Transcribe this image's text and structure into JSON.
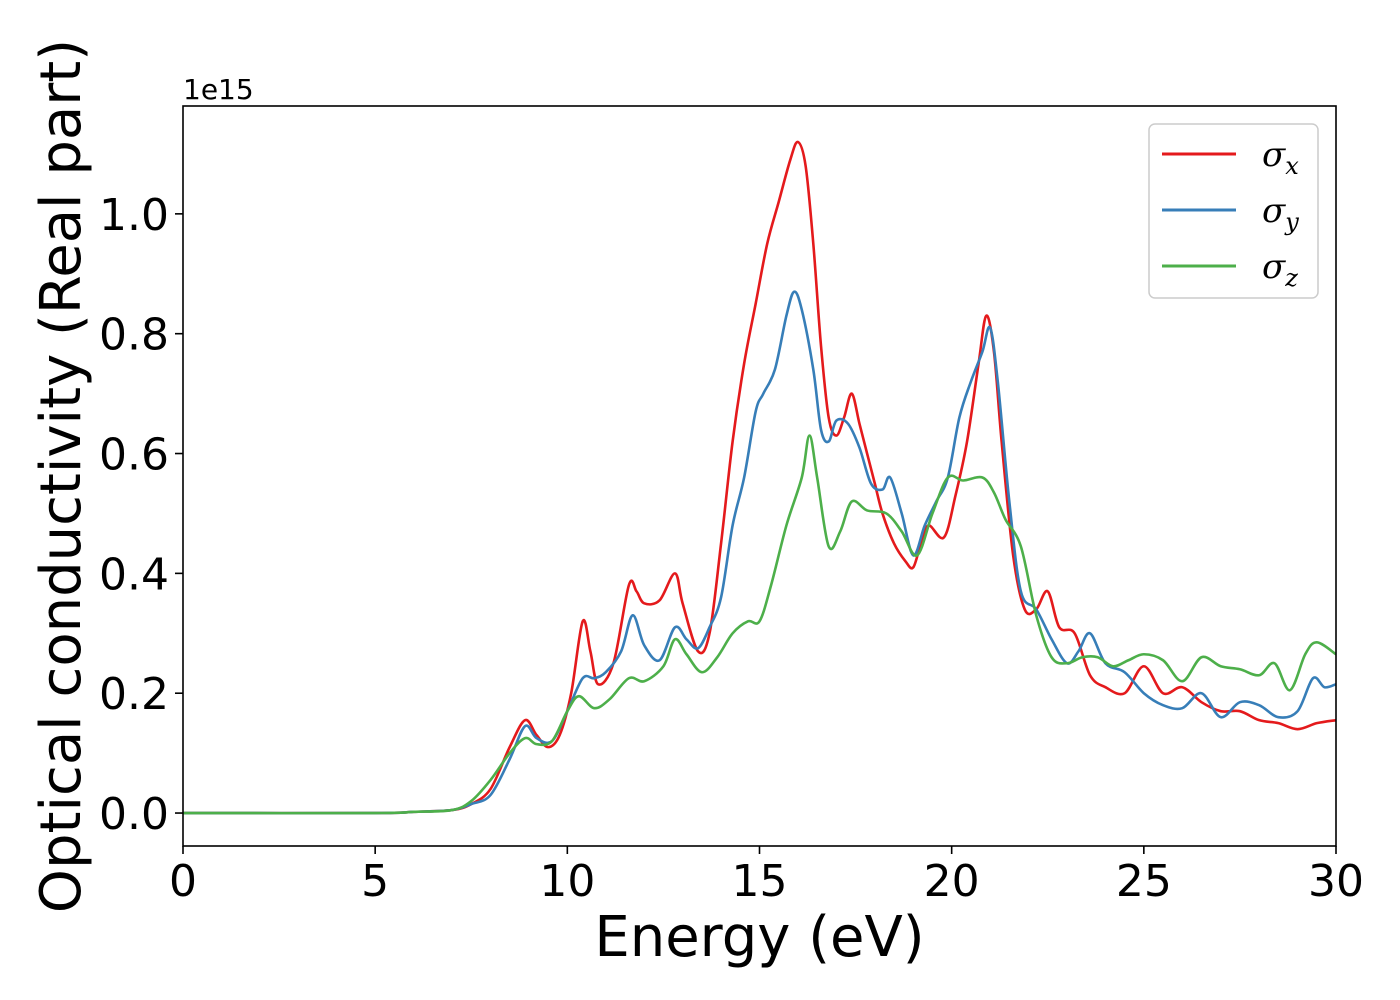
{
  "chart_data": {
    "type": "line",
    "title": "",
    "xlabel": "Energy (eV)",
    "ylabel": "Optical conductivity (Real part)",
    "y_offset_label": "1e15",
    "xlim": [
      0,
      30
    ],
    "ylim": [
      -0.055,
      1.18
    ],
    "x_ticks": [
      0,
      5,
      10,
      15,
      20,
      25,
      30
    ],
    "x_tick_labels": [
      "0",
      "5",
      "10",
      "15",
      "20",
      "25",
      "30"
    ],
    "y_ticks": [
      0.0,
      0.2,
      0.4,
      0.6,
      0.8,
      1.0
    ],
    "y_tick_labels": [
      "0.0",
      "0.2",
      "0.4",
      "0.6",
      "0.8",
      "1.0"
    ],
    "grid": false,
    "legend_position": "top-right",
    "series": [
      {
        "name": "σx",
        "symbol": "σ",
        "subscript": "x",
        "color": "#e41a1c",
        "points": [
          [
            0,
            0
          ],
          [
            5,
            0.0
          ],
          [
            6,
            0.002
          ],
          [
            7,
            0.005
          ],
          [
            7.5,
            0.015
          ],
          [
            8,
            0.04
          ],
          [
            8.5,
            0.11
          ],
          [
            8.9,
            0.155
          ],
          [
            9.2,
            0.13
          ],
          [
            9.5,
            0.11
          ],
          [
            9.8,
            0.13
          ],
          [
            10.1,
            0.2
          ],
          [
            10.4,
            0.32
          ],
          [
            10.6,
            0.27
          ],
          [
            10.8,
            0.215
          ],
          [
            11.2,
            0.25
          ],
          [
            11.6,
            0.38
          ],
          [
            11.8,
            0.37
          ],
          [
            12,
            0.35
          ],
          [
            12.4,
            0.355
          ],
          [
            12.8,
            0.4
          ],
          [
            13,
            0.35
          ],
          [
            13.4,
            0.27
          ],
          [
            13.7,
            0.3
          ],
          [
            14,
            0.45
          ],
          [
            14.3,
            0.62
          ],
          [
            14.6,
            0.75
          ],
          [
            14.9,
            0.85
          ],
          [
            15.2,
            0.95
          ],
          [
            15.5,
            1.02
          ],
          [
            15.8,
            1.09
          ],
          [
            16,
            1.12
          ],
          [
            16.2,
            1.08
          ],
          [
            16.4,
            0.95
          ],
          [
            16.6,
            0.78
          ],
          [
            16.8,
            0.66
          ],
          [
            17,
            0.63
          ],
          [
            17.2,
            0.66
          ],
          [
            17.4,
            0.7
          ],
          [
            17.6,
            0.65
          ],
          [
            17.8,
            0.6
          ],
          [
            18,
            0.55
          ],
          [
            18.2,
            0.5
          ],
          [
            18.5,
            0.45
          ],
          [
            18.8,
            0.42
          ],
          [
            19,
            0.41
          ],
          [
            19.2,
            0.45
          ],
          [
            19.4,
            0.48
          ],
          [
            19.8,
            0.46
          ],
          [
            20.1,
            0.53
          ],
          [
            20.4,
            0.62
          ],
          [
            20.7,
            0.75
          ],
          [
            20.9,
            0.83
          ],
          [
            21.1,
            0.77
          ],
          [
            21.3,
            0.62
          ],
          [
            21.6,
            0.43
          ],
          [
            21.9,
            0.34
          ],
          [
            22.2,
            0.34
          ],
          [
            22.5,
            0.37
          ],
          [
            22.8,
            0.31
          ],
          [
            23.2,
            0.3
          ],
          [
            23.6,
            0.23
          ],
          [
            24,
            0.21
          ],
          [
            24.5,
            0.2
          ],
          [
            25,
            0.245
          ],
          [
            25.5,
            0.2
          ],
          [
            26,
            0.21
          ],
          [
            26.5,
            0.185
          ],
          [
            27,
            0.17
          ],
          [
            27.5,
            0.17
          ],
          [
            28,
            0.155
          ],
          [
            28.5,
            0.15
          ],
          [
            29,
            0.14
          ],
          [
            29.5,
            0.15
          ],
          [
            30,
            0.155
          ]
        ]
      },
      {
        "name": "σy",
        "symbol": "σ",
        "subscript": "y",
        "color": "#377eb8",
        "points": [
          [
            0,
            0
          ],
          [
            5,
            0.0
          ],
          [
            6,
            0.002
          ],
          [
            7,
            0.005
          ],
          [
            7.5,
            0.015
          ],
          [
            8,
            0.03
          ],
          [
            8.5,
            0.09
          ],
          [
            8.9,
            0.145
          ],
          [
            9.2,
            0.125
          ],
          [
            9.6,
            0.12
          ],
          [
            10,
            0.17
          ],
          [
            10.4,
            0.225
          ],
          [
            10.7,
            0.225
          ],
          [
            11,
            0.235
          ],
          [
            11.4,
            0.27
          ],
          [
            11.7,
            0.33
          ],
          [
            12,
            0.28
          ],
          [
            12.4,
            0.255
          ],
          [
            12.8,
            0.31
          ],
          [
            13.1,
            0.29
          ],
          [
            13.4,
            0.275
          ],
          [
            13.7,
            0.31
          ],
          [
            14,
            0.36
          ],
          [
            14.3,
            0.48
          ],
          [
            14.6,
            0.56
          ],
          [
            14.9,
            0.67
          ],
          [
            15.1,
            0.7
          ],
          [
            15.4,
            0.74
          ],
          [
            15.7,
            0.83
          ],
          [
            15.9,
            0.87
          ],
          [
            16.1,
            0.84
          ],
          [
            16.4,
            0.74
          ],
          [
            16.6,
            0.64
          ],
          [
            16.8,
            0.62
          ],
          [
            17,
            0.655
          ],
          [
            17.3,
            0.65
          ],
          [
            17.6,
            0.61
          ],
          [
            17.9,
            0.55
          ],
          [
            18.2,
            0.54
          ],
          [
            18.4,
            0.56
          ],
          [
            18.7,
            0.5
          ],
          [
            19,
            0.43
          ],
          [
            19.3,
            0.48
          ],
          [
            19.6,
            0.52
          ],
          [
            19.9,
            0.56
          ],
          [
            20.2,
            0.66
          ],
          [
            20.5,
            0.72
          ],
          [
            20.8,
            0.77
          ],
          [
            21,
            0.81
          ],
          [
            21.2,
            0.72
          ],
          [
            21.5,
            0.52
          ],
          [
            21.8,
            0.37
          ],
          [
            22.2,
            0.34
          ],
          [
            22.6,
            0.29
          ],
          [
            23,
            0.25
          ],
          [
            23.3,
            0.27
          ],
          [
            23.6,
            0.3
          ],
          [
            24,
            0.25
          ],
          [
            24.5,
            0.235
          ],
          [
            25,
            0.2
          ],
          [
            25.5,
            0.18
          ],
          [
            26,
            0.175
          ],
          [
            26.5,
            0.2
          ],
          [
            27,
            0.16
          ],
          [
            27.5,
            0.185
          ],
          [
            28,
            0.18
          ],
          [
            28.5,
            0.16
          ],
          [
            29,
            0.17
          ],
          [
            29.4,
            0.225
          ],
          [
            29.7,
            0.21
          ],
          [
            30,
            0.215
          ]
        ]
      },
      {
        "name": "σz",
        "symbol": "σ",
        "subscript": "z",
        "color": "#4daf4a",
        "points": [
          [
            0,
            0
          ],
          [
            5,
            0.0
          ],
          [
            6,
            0.002
          ],
          [
            7,
            0.005
          ],
          [
            7.5,
            0.02
          ],
          [
            8,
            0.055
          ],
          [
            8.5,
            0.1
          ],
          [
            8.9,
            0.125
          ],
          [
            9.2,
            0.115
          ],
          [
            9.6,
            0.12
          ],
          [
            10,
            0.17
          ],
          [
            10.3,
            0.195
          ],
          [
            10.7,
            0.175
          ],
          [
            11.1,
            0.19
          ],
          [
            11.6,
            0.225
          ],
          [
            12,
            0.22
          ],
          [
            12.5,
            0.245
          ],
          [
            12.8,
            0.29
          ],
          [
            13.1,
            0.265
          ],
          [
            13.5,
            0.235
          ],
          [
            13.9,
            0.26
          ],
          [
            14.3,
            0.3
          ],
          [
            14.7,
            0.32
          ],
          [
            15,
            0.32
          ],
          [
            15.3,
            0.38
          ],
          [
            15.7,
            0.48
          ],
          [
            16.1,
            0.56
          ],
          [
            16.3,
            0.63
          ],
          [
            16.5,
            0.56
          ],
          [
            16.8,
            0.445
          ],
          [
            17.1,
            0.47
          ],
          [
            17.4,
            0.52
          ],
          [
            17.8,
            0.505
          ],
          [
            18.3,
            0.5
          ],
          [
            18.7,
            0.47
          ],
          [
            19.1,
            0.43
          ],
          [
            19.5,
            0.5
          ],
          [
            19.9,
            0.56
          ],
          [
            20.3,
            0.555
          ],
          [
            20.8,
            0.56
          ],
          [
            21.1,
            0.535
          ],
          [
            21.4,
            0.49
          ],
          [
            21.8,
            0.445
          ],
          [
            22.2,
            0.33
          ],
          [
            22.6,
            0.26
          ],
          [
            23,
            0.25
          ],
          [
            23.4,
            0.26
          ],
          [
            23.8,
            0.26
          ],
          [
            24.2,
            0.245
          ],
          [
            24.6,
            0.255
          ],
          [
            25,
            0.265
          ],
          [
            25.5,
            0.255
          ],
          [
            26,
            0.22
          ],
          [
            26.5,
            0.26
          ],
          [
            27,
            0.245
          ],
          [
            27.5,
            0.24
          ],
          [
            28,
            0.23
          ],
          [
            28.4,
            0.25
          ],
          [
            28.8,
            0.205
          ],
          [
            29.2,
            0.265
          ],
          [
            29.5,
            0.285
          ],
          [
            30,
            0.265
          ]
        ]
      }
    ]
  }
}
